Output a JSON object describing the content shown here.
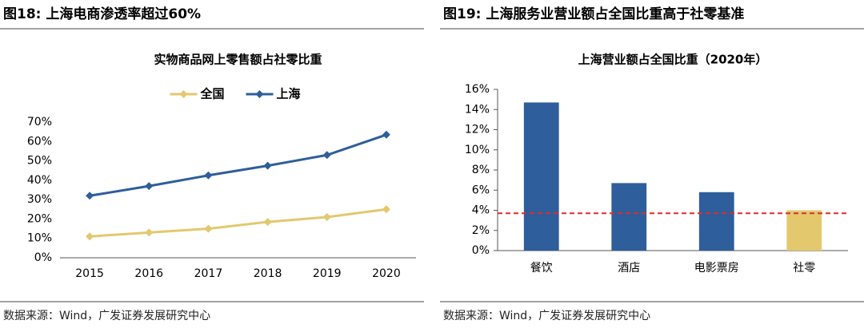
{
  "chart_data": [
    {
      "type": "line",
      "figure_title": "图18:   上海电商渗透率超过60%",
      "title": "实物商品网上零售额占社零比重",
      "source": "数据来源：Wind，广发证券发展研究中心",
      "categories": [
        "2015",
        "2016",
        "2017",
        "2018",
        "2019",
        "2020"
      ],
      "series": [
        {
          "name": "全国",
          "color": "#e3c86e",
          "values": [
            11,
            13,
            15,
            18.5,
            21,
            25
          ]
        },
        {
          "name": "上海",
          "color": "#2e5e9b",
          "values": [
            32,
            37,
            42.5,
            47.5,
            53,
            63.5
          ]
        }
      ],
      "ylim": [
        0,
        70
      ],
      "yticks": [
        {
          "value": 0,
          "label": "0%"
        },
        {
          "value": 10,
          "label": "10%"
        },
        {
          "value": 20,
          "label": "20%"
        },
        {
          "value": 30,
          "label": "30%"
        },
        {
          "value": 40,
          "label": "40%"
        },
        {
          "value": 50,
          "label": "50%"
        },
        {
          "value": 60,
          "label": "60%"
        },
        {
          "value": 70,
          "label": "70%"
        }
      ],
      "legend": "top",
      "grid": false
    },
    {
      "type": "bar",
      "figure_title": "图19:   上海服务业营业额占全国比重高于社零基准",
      "title": "上海营业额占全国比重（2020年）",
      "source": "数据来源：Wind，广发证券发展研究中心",
      "categories": [
        "餐饮",
        "酒店",
        "电影票房",
        "社零"
      ],
      "values": [
        14.7,
        6.7,
        5.8,
        4.0
      ],
      "colors": [
        "#2e5e9b",
        "#2e5e9b",
        "#2e5e9b",
        "#e3c86e"
      ],
      "reference_line": 3.7,
      "reference_color": "#d9302a",
      "ylim": [
        0,
        16
      ],
      "yticks": [
        {
          "value": 0,
          "label": "0%"
        },
        {
          "value": 2,
          "label": "2%"
        },
        {
          "value": 4,
          "label": "4%"
        },
        {
          "value": 6,
          "label": "6%"
        },
        {
          "value": 8,
          "label": "8%"
        },
        {
          "value": 10,
          "label": "10%"
        },
        {
          "value": 12,
          "label": "12%"
        },
        {
          "value": 14,
          "label": "14%"
        },
        {
          "value": 16,
          "label": "16%"
        }
      ],
      "grid": false
    }
  ]
}
